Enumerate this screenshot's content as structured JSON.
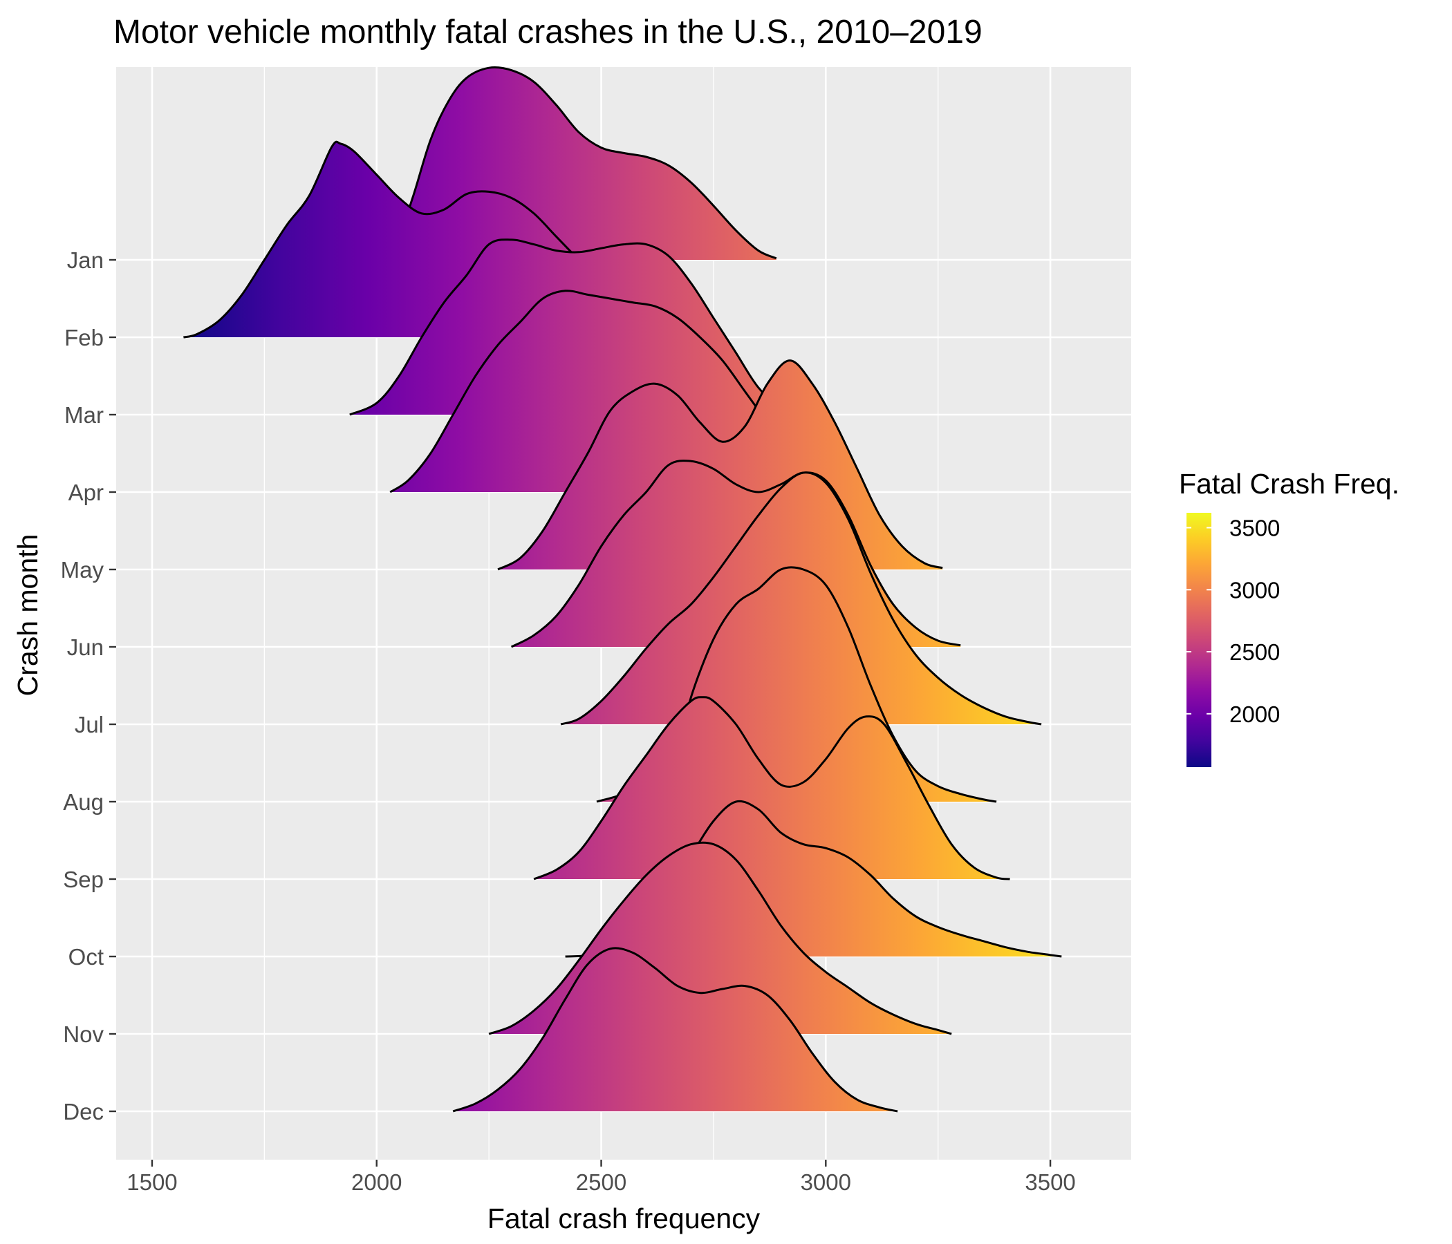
{
  "chart_data": {
    "type": "ridgeline",
    "title": "Motor vehicle monthly fatal crashes in the U.S., 2010–2019",
    "xlabel": "Fatal crash frequency",
    "ylabel": "Crash month",
    "xlim": [
      1420,
      3680
    ],
    "x_ticks": [
      1500,
      2000,
      2500,
      3000,
      3500
    ],
    "x_tick_labels": [
      "1500",
      "2000",
      "2500",
      "3000",
      "3500"
    ],
    "categories": [
      "Jan",
      "Feb",
      "Mar",
      "Apr",
      "May",
      "Jun",
      "Jul",
      "Aug",
      "Sep",
      "Oct",
      "Nov",
      "Dec"
    ],
    "grid": true,
    "panel_background": "#ebebeb",
    "grid_color": "#ffffff",
    "outline_color": "#000000",
    "palette": "plasma",
    "series": [
      {
        "name": "Jan",
        "points": [
          [
            2000,
            0
          ],
          [
            2040,
            0.15
          ],
          [
            2080,
            0.8
          ],
          [
            2120,
            1.55
          ],
          [
            2160,
            2.05
          ],
          [
            2200,
            2.35
          ],
          [
            2250,
            2.48
          ],
          [
            2300,
            2.45
          ],
          [
            2350,
            2.3
          ],
          [
            2400,
            2.0
          ],
          [
            2450,
            1.65
          ],
          [
            2500,
            1.45
          ],
          [
            2550,
            1.38
          ],
          [
            2600,
            1.33
          ],
          [
            2650,
            1.22
          ],
          [
            2700,
            1.0
          ],
          [
            2750,
            0.7
          ],
          [
            2800,
            0.38
          ],
          [
            2850,
            0.12
          ],
          [
            2890,
            0.02
          ]
        ]
      },
      {
        "name": "Feb",
        "points": [
          [
            1570,
            0
          ],
          [
            1600,
            0.04
          ],
          [
            1650,
            0.22
          ],
          [
            1700,
            0.55
          ],
          [
            1750,
            1.0
          ],
          [
            1800,
            1.45
          ],
          [
            1850,
            1.83
          ],
          [
            1900,
            2.46
          ],
          [
            1920,
            2.5
          ],
          [
            1950,
            2.4
          ],
          [
            2000,
            2.1
          ],
          [
            2050,
            1.8
          ],
          [
            2100,
            1.6
          ],
          [
            2150,
            1.65
          ],
          [
            2200,
            1.85
          ],
          [
            2250,
            1.88
          ],
          [
            2300,
            1.8
          ],
          [
            2350,
            1.6
          ],
          [
            2400,
            1.3
          ],
          [
            2450,
            1.0
          ],
          [
            2500,
            0.7
          ],
          [
            2550,
            0.45
          ],
          [
            2600,
            0.25
          ],
          [
            2650,
            0.1
          ],
          [
            2700,
            0.04
          ],
          [
            2750,
            0
          ]
        ]
      },
      {
        "name": "Mar",
        "points": [
          [
            1940,
            0
          ],
          [
            2000,
            0.15
          ],
          [
            2050,
            0.5
          ],
          [
            2100,
            1.0
          ],
          [
            2150,
            1.45
          ],
          [
            2200,
            1.8
          ],
          [
            2250,
            2.2
          ],
          [
            2300,
            2.26
          ],
          [
            2350,
            2.2
          ],
          [
            2400,
            2.12
          ],
          [
            2450,
            2.1
          ],
          [
            2500,
            2.15
          ],
          [
            2550,
            2.2
          ],
          [
            2600,
            2.2
          ],
          [
            2650,
            2.05
          ],
          [
            2700,
            1.7
          ],
          [
            2750,
            1.25
          ],
          [
            2800,
            0.8
          ],
          [
            2850,
            0.35
          ],
          [
            2900,
            0.1
          ],
          [
            2950,
            0.02
          ],
          [
            3000,
            0
          ]
        ]
      },
      {
        "name": "Apr",
        "points": [
          [
            2030,
            0
          ],
          [
            2070,
            0.15
          ],
          [
            2120,
            0.5
          ],
          [
            2170,
            1.0
          ],
          [
            2220,
            1.5
          ],
          [
            2270,
            1.9
          ],
          [
            2320,
            2.2
          ],
          [
            2370,
            2.5
          ],
          [
            2420,
            2.6
          ],
          [
            2470,
            2.55
          ],
          [
            2520,
            2.5
          ],
          [
            2570,
            2.45
          ],
          [
            2620,
            2.4
          ],
          [
            2670,
            2.25
          ],
          [
            2720,
            2.0
          ],
          [
            2770,
            1.7
          ],
          [
            2820,
            1.3
          ],
          [
            2870,
            0.9
          ],
          [
            2920,
            0.5
          ],
          [
            2970,
            0.2
          ],
          [
            3000,
            0.05
          ],
          [
            3050,
            0
          ]
        ]
      },
      {
        "name": "May",
        "points": [
          [
            2270,
            0
          ],
          [
            2320,
            0.15
          ],
          [
            2370,
            0.5
          ],
          [
            2420,
            1.0
          ],
          [
            2470,
            1.5
          ],
          [
            2520,
            2.05
          ],
          [
            2570,
            2.3
          ],
          [
            2620,
            2.4
          ],
          [
            2670,
            2.25
          ],
          [
            2720,
            1.9
          ],
          [
            2770,
            1.65
          ],
          [
            2820,
            1.85
          ],
          [
            2870,
            2.4
          ],
          [
            2920,
            2.7
          ],
          [
            2970,
            2.4
          ],
          [
            3020,
            1.9
          ],
          [
            3070,
            1.3
          ],
          [
            3120,
            0.7
          ],
          [
            3170,
            0.3
          ],
          [
            3220,
            0.08
          ],
          [
            3260,
            0.02
          ]
        ]
      },
      {
        "name": "Jun",
        "points": [
          [
            2300,
            0
          ],
          [
            2350,
            0.15
          ],
          [
            2400,
            0.4
          ],
          [
            2450,
            0.8
          ],
          [
            2500,
            1.3
          ],
          [
            2550,
            1.7
          ],
          [
            2600,
            2.0
          ],
          [
            2650,
            2.35
          ],
          [
            2700,
            2.4
          ],
          [
            2750,
            2.3
          ],
          [
            2800,
            2.1
          ],
          [
            2850,
            2.0
          ],
          [
            2900,
            2.1
          ],
          [
            2950,
            2.25
          ],
          [
            3000,
            2.15
          ],
          [
            3050,
            1.7
          ],
          [
            3100,
            1.05
          ],
          [
            3150,
            0.55
          ],
          [
            3200,
            0.25
          ],
          [
            3250,
            0.08
          ],
          [
            3300,
            0.02
          ]
        ]
      },
      {
        "name": "Jul",
        "points": [
          [
            2410,
            0
          ],
          [
            2450,
            0.07
          ],
          [
            2500,
            0.3
          ],
          [
            2550,
            0.62
          ],
          [
            2600,
            0.98
          ],
          [
            2650,
            1.3
          ],
          [
            2700,
            1.55
          ],
          [
            2750,
            1.9
          ],
          [
            2800,
            2.3
          ],
          [
            2850,
            2.7
          ],
          [
            2900,
            3.05
          ],
          [
            2950,
            3.25
          ],
          [
            3000,
            3.12
          ],
          [
            3050,
            2.65
          ],
          [
            3100,
            1.95
          ],
          [
            3150,
            1.35
          ],
          [
            3200,
            0.9
          ],
          [
            3250,
            0.6
          ],
          [
            3300,
            0.38
          ],
          [
            3350,
            0.22
          ],
          [
            3400,
            0.1
          ],
          [
            3450,
            0.03
          ],
          [
            3480,
            0
          ]
        ]
      },
      {
        "name": "Aug",
        "points": [
          [
            2490,
            0
          ],
          [
            2550,
            0.1
          ],
          [
            2600,
            0.25
          ],
          [
            2650,
            0.5
          ],
          [
            2680,
            0.8
          ],
          [
            2700,
            1.35
          ],
          [
            2750,
            2.1
          ],
          [
            2800,
            2.55
          ],
          [
            2850,
            2.75
          ],
          [
            2900,
            3.0
          ],
          [
            2950,
            3.0
          ],
          [
            3000,
            2.8
          ],
          [
            3050,
            2.25
          ],
          [
            3100,
            1.5
          ],
          [
            3150,
            0.85
          ],
          [
            3200,
            0.4
          ],
          [
            3250,
            0.2
          ],
          [
            3300,
            0.1
          ],
          [
            3350,
            0.03
          ],
          [
            3380,
            0
          ]
        ]
      },
      {
        "name": "Sep",
        "points": [
          [
            2350,
            0
          ],
          [
            2400,
            0.12
          ],
          [
            2450,
            0.35
          ],
          [
            2500,
            0.75
          ],
          [
            2550,
            1.2
          ],
          [
            2600,
            1.6
          ],
          [
            2650,
            2.0
          ],
          [
            2700,
            2.3
          ],
          [
            2725,
            2.35
          ],
          [
            2750,
            2.3
          ],
          [
            2800,
            2.0
          ],
          [
            2850,
            1.55
          ],
          [
            2900,
            1.22
          ],
          [
            2950,
            1.25
          ],
          [
            3000,
            1.55
          ],
          [
            3050,
            1.95
          ],
          [
            3090,
            2.1
          ],
          [
            3130,
            2.0
          ],
          [
            3180,
            1.5
          ],
          [
            3230,
            0.95
          ],
          [
            3280,
            0.45
          ],
          [
            3330,
            0.15
          ],
          [
            3380,
            0.02
          ],
          [
            3410,
            0
          ]
        ]
      },
      {
        "name": "Oct",
        "points": [
          [
            2420,
            0
          ],
          [
            2500,
            0.02
          ],
          [
            2550,
            0.1
          ],
          [
            2600,
            0.35
          ],
          [
            2650,
            0.8
          ],
          [
            2700,
            1.3
          ],
          [
            2750,
            1.75
          ],
          [
            2800,
            2.0
          ],
          [
            2850,
            1.9
          ],
          [
            2900,
            1.6
          ],
          [
            2950,
            1.45
          ],
          [
            3000,
            1.4
          ],
          [
            3050,
            1.28
          ],
          [
            3100,
            1.05
          ],
          [
            3150,
            0.75
          ],
          [
            3200,
            0.52
          ],
          [
            3250,
            0.38
          ],
          [
            3300,
            0.28
          ],
          [
            3350,
            0.2
          ],
          [
            3400,
            0.12
          ],
          [
            3450,
            0.06
          ],
          [
            3500,
            0.02
          ],
          [
            3525,
            0
          ]
        ]
      },
      {
        "name": "Nov",
        "points": [
          [
            2250,
            0
          ],
          [
            2300,
            0.1
          ],
          [
            2350,
            0.3
          ],
          [
            2400,
            0.58
          ],
          [
            2450,
            0.95
          ],
          [
            2500,
            1.35
          ],
          [
            2550,
            1.72
          ],
          [
            2600,
            2.05
          ],
          [
            2650,
            2.3
          ],
          [
            2700,
            2.45
          ],
          [
            2750,
            2.45
          ],
          [
            2800,
            2.25
          ],
          [
            2850,
            1.85
          ],
          [
            2900,
            1.4
          ],
          [
            2950,
            1.05
          ],
          [
            3000,
            0.8
          ],
          [
            3050,
            0.6
          ],
          [
            3100,
            0.4
          ],
          [
            3150,
            0.25
          ],
          [
            3200,
            0.13
          ],
          [
            3250,
            0.05
          ],
          [
            3280,
            0
          ]
        ]
      },
      {
        "name": "Dec",
        "points": [
          [
            2170,
            0
          ],
          [
            2220,
            0.1
          ],
          [
            2270,
            0.28
          ],
          [
            2320,
            0.55
          ],
          [
            2370,
            0.95
          ],
          [
            2420,
            1.45
          ],
          [
            2470,
            1.9
          ],
          [
            2520,
            2.1
          ],
          [
            2570,
            2.05
          ],
          [
            2620,
            1.85
          ],
          [
            2670,
            1.62
          ],
          [
            2720,
            1.53
          ],
          [
            2770,
            1.58
          ],
          [
            2820,
            1.62
          ],
          [
            2870,
            1.5
          ],
          [
            2920,
            1.18
          ],
          [
            2970,
            0.75
          ],
          [
            3020,
            0.38
          ],
          [
            3070,
            0.15
          ],
          [
            3120,
            0.05
          ],
          [
            3160,
            0
          ]
        ]
      }
    ],
    "legend": {
      "title": "Fatal Crash Freq.",
      "placement": "right",
      "range": [
        1570,
        3620
      ],
      "ticks": [
        2000,
        2500,
        3000,
        3500
      ],
      "tick_labels": [
        "2000",
        "2500",
        "3000",
        "3500"
      ],
      "colors": [
        "#0d0887",
        "#41049d",
        "#6a00a8",
        "#8f0da4",
        "#b12a90",
        "#cc4778",
        "#e16462",
        "#f2844b",
        "#fca636",
        "#fcce25",
        "#f0f921"
      ]
    }
  }
}
